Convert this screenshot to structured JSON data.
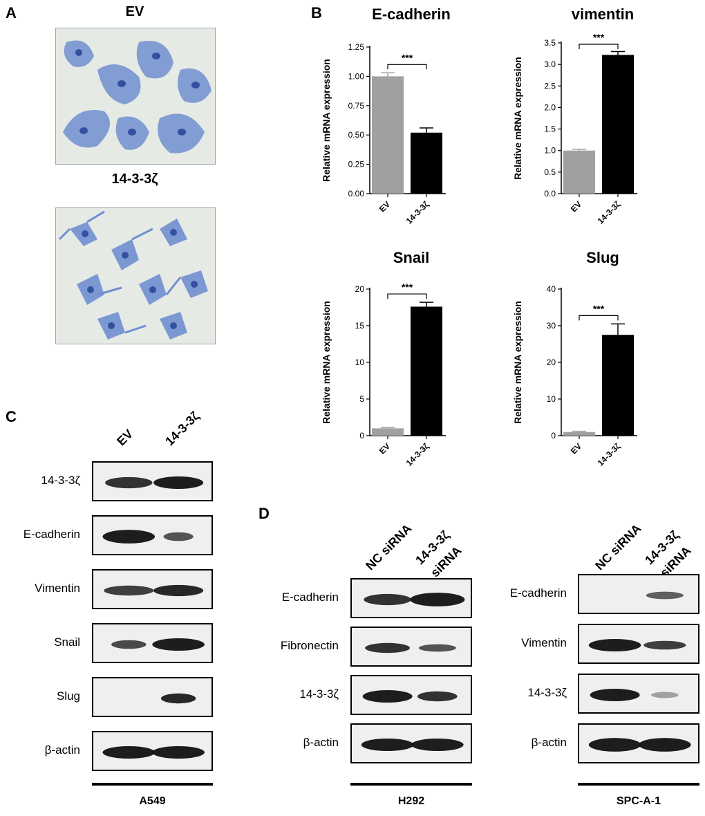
{
  "panels": {
    "A": {
      "label": "A",
      "top_title": "EV",
      "bottom_title": "14-3-3ζ"
    },
    "B": {
      "label": "B"
    },
    "C": {
      "label": "C",
      "columns": [
        "EV",
        "14-3-3ζ"
      ],
      "rows": [
        "14-3-3ζ",
        "E-cadherin",
        "Vimentin",
        "Snail",
        "Slug",
        "β-actin"
      ],
      "cell_line": "A549"
    },
    "D": {
      "label": "D",
      "left": {
        "columns": [
          "NC siRNA",
          "14-3-3ζ",
          "siRNA"
        ],
        "rows": [
          "E-cadherin",
          "Fibronectin",
          "14-3-3ζ",
          "β-actin"
        ],
        "cell_line": "H292"
      },
      "right": {
        "columns": [
          "NC siRNA",
          "14-3-3ζ",
          "siRNA"
        ],
        "rows": [
          "E-cadherin",
          "Vimentin",
          "14-3-3ζ",
          "β-actin"
        ],
        "cell_line": "SPC-A-1"
      }
    }
  },
  "chart_data": [
    {
      "type": "bar",
      "title": "E-cadherin",
      "ylabel": "Relative mRNA expression",
      "categories": [
        "EV",
        "14-3-3ζ"
      ],
      "values": [
        1.0,
        0.52
      ],
      "errors": [
        0.03,
        0.04
      ],
      "ylim": [
        0,
        1.25
      ],
      "yticks": [
        0.0,
        0.25,
        0.5,
        0.75,
        1.0,
        1.25
      ],
      "ytick_labels": [
        "0.00",
        "0.25",
        "0.50",
        "0.75",
        "1.00",
        "1.25"
      ],
      "significance": "***",
      "bar_colors": [
        "#a0a0a0",
        "#000000"
      ]
    },
    {
      "type": "bar",
      "title": "vimentin",
      "ylabel": "Relative mRNA expression",
      "categories": [
        "EV",
        "14-3-3ζ"
      ],
      "values": [
        1.0,
        3.22
      ],
      "errors": [
        0.03,
        0.08
      ],
      "ylim": [
        0,
        3.5
      ],
      "yticks": [
        0.0,
        0.5,
        1.0,
        1.5,
        2.0,
        2.5,
        3.0,
        3.5
      ],
      "ytick_labels": [
        "0.0",
        "0.5",
        "1.0",
        "1.5",
        "2.0",
        "2.5",
        "3.0",
        "3.5"
      ],
      "significance": "***",
      "bar_colors": [
        "#a0a0a0",
        "#000000"
      ]
    },
    {
      "type": "bar",
      "title": "Snail",
      "ylabel": "Relative mRNA expression",
      "categories": [
        "EV",
        "14-3-3ζ"
      ],
      "values": [
        1.0,
        17.6
      ],
      "errors": [
        0.1,
        0.6
      ],
      "ylim": [
        0,
        20
      ],
      "yticks": [
        0,
        5,
        10,
        15,
        20
      ],
      "ytick_labels": [
        "0",
        "5",
        "10",
        "15",
        "20"
      ],
      "significance": "***",
      "bar_colors": [
        "#a0a0a0",
        "#000000"
      ]
    },
    {
      "type": "bar",
      "title": "Slug",
      "ylabel": "Relative mRNA expression",
      "categories": [
        "EV",
        "14-3-3ζ"
      ],
      "values": [
        1.0,
        27.5
      ],
      "errors": [
        0.2,
        3.0
      ],
      "ylim": [
        0,
        40
      ],
      "yticks": [
        0,
        10,
        20,
        30,
        40
      ],
      "ytick_labels": [
        "0",
        "10",
        "20",
        "30",
        "40"
      ],
      "significance": "***",
      "bar_colors": [
        "#a0a0a0",
        "#000000"
      ]
    }
  ],
  "colors": {
    "ev_bar": "#a0a0a0",
    "treatment_bar": "#000000",
    "stain": "#4a6fb8",
    "background_micro": "#e8ece6"
  }
}
